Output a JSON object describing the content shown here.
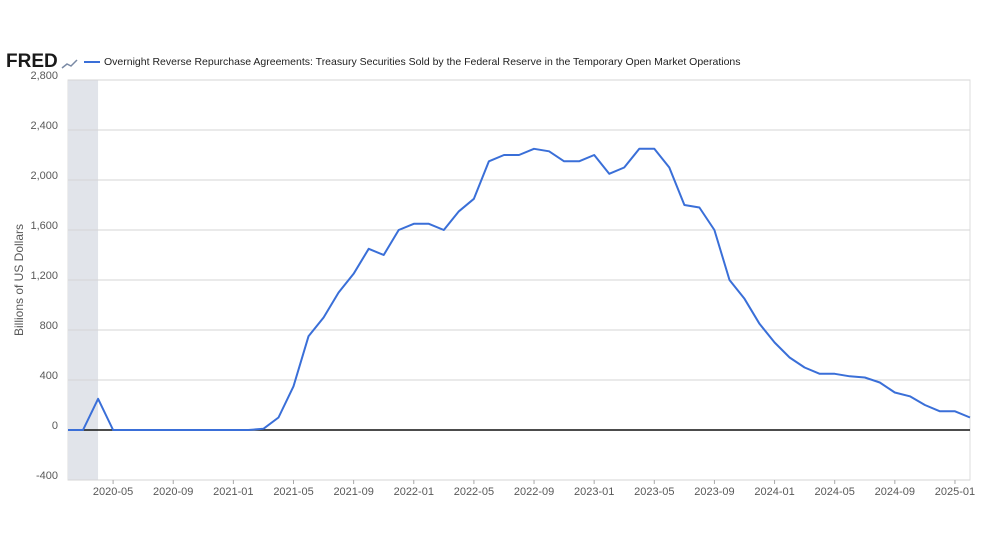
{
  "chart_data": {
    "type": "line",
    "logo": "FRED",
    "ylabel": "Billions of US Dollars",
    "x": [
      "2020-02",
      "2020-03",
      "2020-04",
      "2020-05",
      "2020-06",
      "2020-07",
      "2020-08",
      "2020-09",
      "2020-10",
      "2020-11",
      "2020-12",
      "2021-01",
      "2021-02",
      "2021-03",
      "2021-04",
      "2021-05",
      "2021-06",
      "2021-07",
      "2021-08",
      "2021-09",
      "2021-10",
      "2021-11",
      "2021-12",
      "2022-01",
      "2022-02",
      "2022-03",
      "2022-04",
      "2022-05",
      "2022-06",
      "2022-07",
      "2022-08",
      "2022-09",
      "2022-10",
      "2022-11",
      "2022-12",
      "2023-01",
      "2023-02",
      "2023-03",
      "2023-04",
      "2023-05",
      "2023-06",
      "2023-07",
      "2023-08",
      "2023-09",
      "2023-10",
      "2023-11",
      "2023-12",
      "2024-01",
      "2024-02",
      "2024-03",
      "2024-04",
      "2024-05",
      "2024-06",
      "2024-07",
      "2024-08",
      "2024-09",
      "2024-10",
      "2024-11",
      "2024-12",
      "2025-01",
      "2025-02"
    ],
    "series": [
      {
        "name": "Overnight Reverse Repurchase Agreements: Treasury Securities Sold by the Federal Reserve in the Temporary Open Market Operations",
        "color": "#3a6fd8",
        "values": [
          0,
          0,
          250,
          0,
          0,
          0,
          0,
          0,
          0,
          0,
          0,
          0,
          0,
          10,
          100,
          350,
          750,
          900,
          1100,
          1250,
          1450,
          1400,
          1600,
          1650,
          1650,
          1600,
          1750,
          1850,
          2150,
          2200,
          2200,
          2250,
          2230,
          2150,
          2150,
          2200,
          2050,
          2100,
          2250,
          2250,
          2100,
          1800,
          1780,
          1600,
          1200,
          1050,
          850,
          700,
          580,
          500,
          450,
          450,
          430,
          420,
          380,
          300,
          270,
          200,
          150,
          150,
          100
        ]
      }
    ],
    "xlim": [
      "2020-02",
      "2025-02"
    ],
    "xticks": [
      "2020-05",
      "2020-09",
      "2021-01",
      "2021-05",
      "2021-09",
      "2022-01",
      "2022-05",
      "2022-09",
      "2023-01",
      "2023-05",
      "2023-09",
      "2024-01",
      "2024-05",
      "2024-09",
      "2025-01"
    ],
    "ylim": [
      -400,
      2800
    ],
    "yticks": [
      {
        "value": 2800,
        "label": "2,800"
      },
      {
        "value": 2400,
        "label": "2,400"
      },
      {
        "value": 2000,
        "label": "2,000"
      },
      {
        "value": 1600,
        "label": "1,600"
      },
      {
        "value": 1200,
        "label": "1,200"
      },
      800,
      400,
      0,
      -400
    ],
    "grid": true,
    "shading": {
      "start": "2020-02",
      "end": "2020-04",
      "color": "#e1e4ea"
    }
  }
}
